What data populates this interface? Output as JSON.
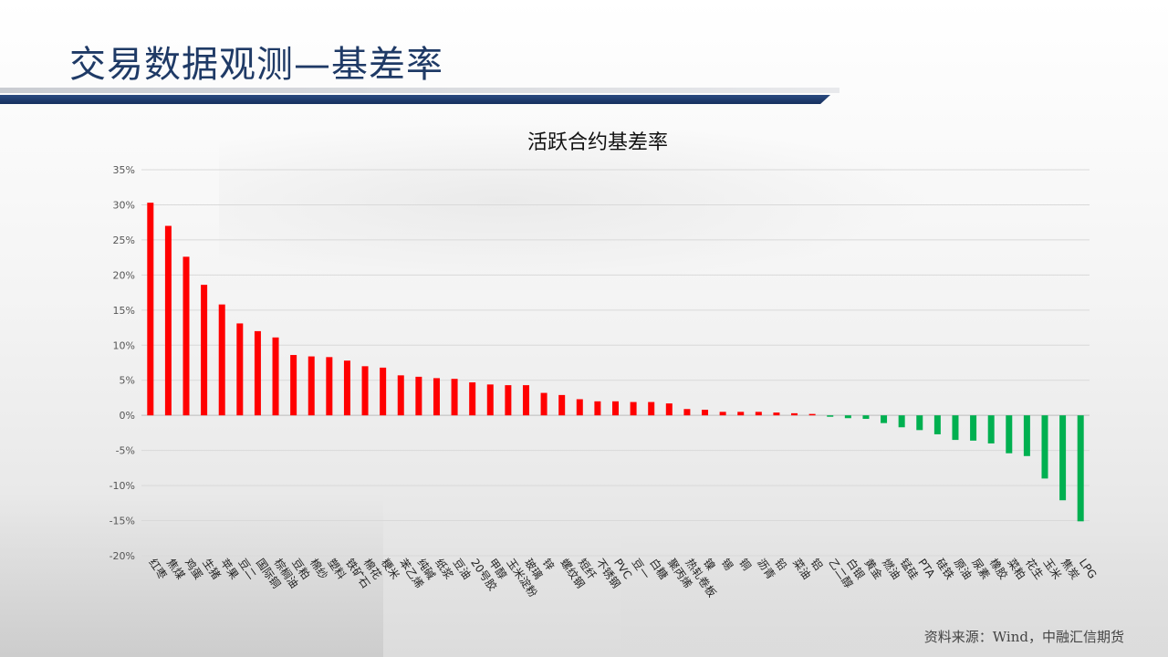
{
  "page": {
    "title": "交易数据观测—基差率",
    "source": "资料来源：Wind，中融汇信期货"
  },
  "colors": {
    "positive": "#ff0000",
    "negative": "#00b050",
    "title": "#1f3a66",
    "header_rule": "#16305f"
  },
  "chart_data": {
    "type": "bar",
    "title": "活跃合约基差率",
    "xlabel": "",
    "ylabel": "",
    "ylim": [
      -20,
      35
    ],
    "yticks": [
      35,
      30,
      25,
      20,
      15,
      10,
      5,
      0,
      -5,
      -10,
      -15,
      -20
    ],
    "ytick_format": "percent",
    "grid": true,
    "legend": "none",
    "categories": [
      "红枣",
      "焦煤",
      "鸡蛋",
      "生猪",
      "苹果",
      "豆二",
      "国际铜",
      "棕榈油",
      "豆粕",
      "棉纱",
      "塑料",
      "铁矿石",
      "棉花",
      "粳米",
      "苯乙烯",
      "纯碱",
      "纸浆",
      "豆油",
      "20号胶",
      "甲醇",
      "玉米淀粉",
      "玻璃",
      "锌",
      "螺纹钢",
      "短纤",
      "不锈钢",
      "PVC",
      "豆一",
      "白糖",
      "聚丙烯",
      "热轧卷板",
      "镍",
      "锡",
      "铜",
      "沥青",
      "铅",
      "菜油",
      "铝",
      "乙二醇",
      "白银",
      "黄金",
      "燃油",
      "锰硅",
      "PTA",
      "硅铁",
      "原油",
      "尿素",
      "橡胶",
      "菜粕",
      "花生",
      "玉米",
      "焦炭",
      "LPG"
    ],
    "values": [
      30.3,
      27.0,
      22.6,
      18.6,
      15.8,
      13.1,
      12.0,
      11.1,
      8.6,
      8.4,
      8.3,
      7.8,
      7.0,
      6.8,
      5.7,
      5.5,
      5.3,
      5.2,
      4.7,
      4.4,
      4.3,
      4.3,
      3.2,
      2.9,
      2.3,
      2.0,
      2.0,
      1.9,
      1.9,
      1.7,
      0.9,
      0.8,
      0.5,
      0.5,
      0.5,
      0.4,
      0.3,
      0.2,
      -0.2,
      -0.4,
      -0.5,
      -1.1,
      -1.7,
      -2.1,
      -2.7,
      -3.5,
      -3.6,
      -4.0,
      -5.4,
      -5.8,
      -9.0,
      -12.1,
      -15.1
    ]
  }
}
